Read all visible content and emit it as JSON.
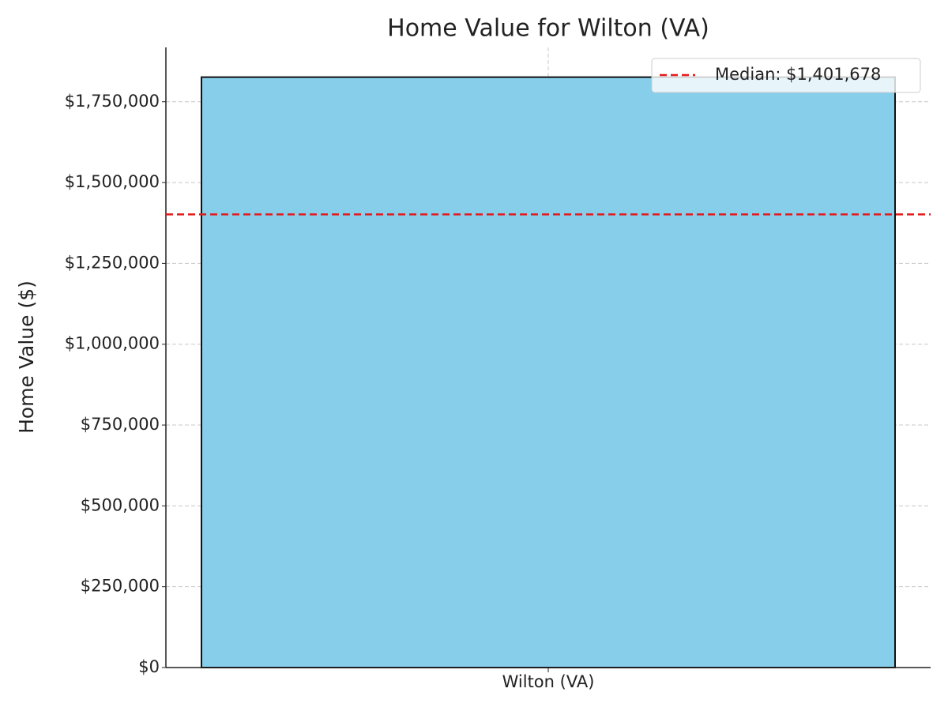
{
  "chart_data": {
    "type": "bar",
    "title": "Home Value for Wilton (VA)",
    "y_label": "Home Value ($)",
    "categories": [
      "Wilton (VA)"
    ],
    "values": [
      1826000
    ],
    "color": "#87ceeb",
    "edgecolor": "#111111",
    "ylim": [
      0,
      1918000
    ],
    "yticks": [
      {
        "value": 0,
        "label": "$0"
      },
      {
        "value": 250000,
        "label": "$250,000"
      },
      {
        "value": 500000,
        "label": "$500,000"
      },
      {
        "value": 750000,
        "label": "$750,000"
      },
      {
        "value": 1000000,
        "label": "$1,000,000"
      },
      {
        "value": 1250000,
        "label": "$1,250,000"
      },
      {
        "value": 1500000,
        "label": "$1,500,000"
      },
      {
        "value": 1750000,
        "label": "$1,750,000"
      }
    ],
    "grid": true,
    "reference_line": {
      "value": 1401678,
      "label": "Median: $1,401,678",
      "color": "#e41a1c",
      "style": "dashed"
    },
    "legend": "upper right"
  }
}
